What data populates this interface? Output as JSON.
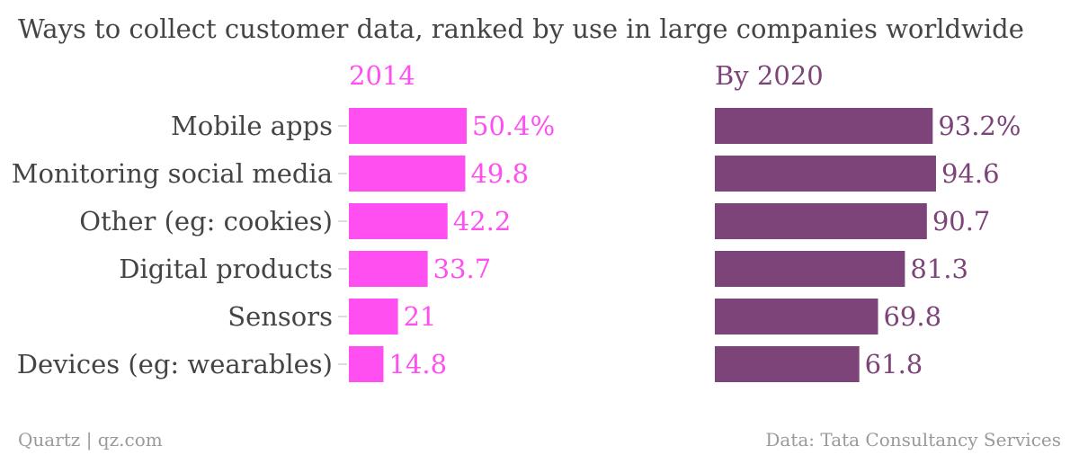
{
  "chart_data": {
    "type": "bar",
    "orientation": "horizontal",
    "title": "Ways to collect customer data, ranked by use in large companies worldwide",
    "categories": [
      "Mobile apps",
      "Monitoring social media",
      "Other (eg: cookies)",
      "Digital products",
      "Sensors",
      "Devices (eg: wearables)"
    ],
    "series": [
      {
        "name": "2014",
        "values": [
          50.4,
          49.8,
          42.2,
          33.7,
          21,
          14.8
        ],
        "labels": [
          "50.4%",
          "49.8",
          "42.2",
          "33.7",
          "21",
          "14.8"
        ],
        "color": "#ff4ff0"
      },
      {
        "name": "By 2020",
        "values": [
          93.2,
          94.6,
          90.7,
          81.3,
          69.8,
          61.8
        ],
        "labels": [
          "93.2%",
          "94.6",
          "90.7",
          "81.3",
          "69.8",
          "61.8"
        ],
        "color": "#7c4479"
      }
    ],
    "xlim": [
      0,
      100
    ],
    "grid": false,
    "legend": "panel-titles"
  },
  "footer": {
    "credit": "Quartz | qz.com",
    "source": "Data: Tata Consultancy Services"
  },
  "colors": {
    "text": "#444444",
    "footer_text": "#9a9a9a",
    "tick": "#bbbbbb"
  }
}
